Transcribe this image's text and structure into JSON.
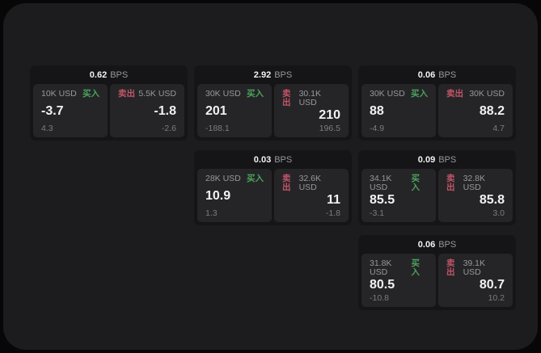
{
  "colors": {
    "buy_green": "#4ba35c",
    "sell_red": "#c25568",
    "page_background": "#1c1c1e",
    "card_background": "#151517",
    "panel_background": "#252527"
  },
  "cards": [
    {
      "bps": "0.62",
      "unit": "BPS",
      "buy": {
        "amount": "10K USD",
        "side": "买入",
        "value": "-3.7",
        "change": "4.3"
      },
      "sell": {
        "side": "卖出",
        "amount": "5.5K USD",
        "value": "-1.8",
        "change": "-2.6"
      }
    },
    {
      "bps": "2.92",
      "unit": "BPS",
      "buy": {
        "amount": "30K USD",
        "side": "买入",
        "value": "201",
        "change": "-188.1"
      },
      "sell": {
        "side": "卖出",
        "amount": "30.1K USD",
        "value": "210",
        "change": "196.5"
      }
    },
    {
      "bps": "0.06",
      "unit": "BPS",
      "buy": {
        "amount": "30K USD",
        "side": "买入",
        "value": "88",
        "change": "-4.9"
      },
      "sell": {
        "side": "卖出",
        "amount": "30K USD",
        "value": "88.2",
        "change": "4.7"
      }
    },
    {
      "bps": "0.03",
      "unit": "BPS",
      "buy": {
        "amount": "28K USD",
        "side": "买入",
        "value": "10.9",
        "change": "1.3"
      },
      "sell": {
        "side": "卖出",
        "amount": "32.6K USD",
        "value": "11",
        "change": "-1.8"
      }
    },
    {
      "bps": "0.09",
      "unit": "BPS",
      "buy": {
        "amount": "34.1K USD",
        "side": "买入",
        "value": "85.5",
        "change": "-3.1"
      },
      "sell": {
        "side": "卖出",
        "amount": "32.8K USD",
        "value": "85.8",
        "change": "3.0"
      }
    },
    {
      "bps": "0.06",
      "unit": "BPS",
      "buy": {
        "amount": "31.8K USD",
        "side": "买入",
        "value": "80.5",
        "change": "-10.8"
      },
      "sell": {
        "side": "卖出",
        "amount": "39.1K USD",
        "value": "80.7",
        "change": "10.2"
      }
    }
  ]
}
